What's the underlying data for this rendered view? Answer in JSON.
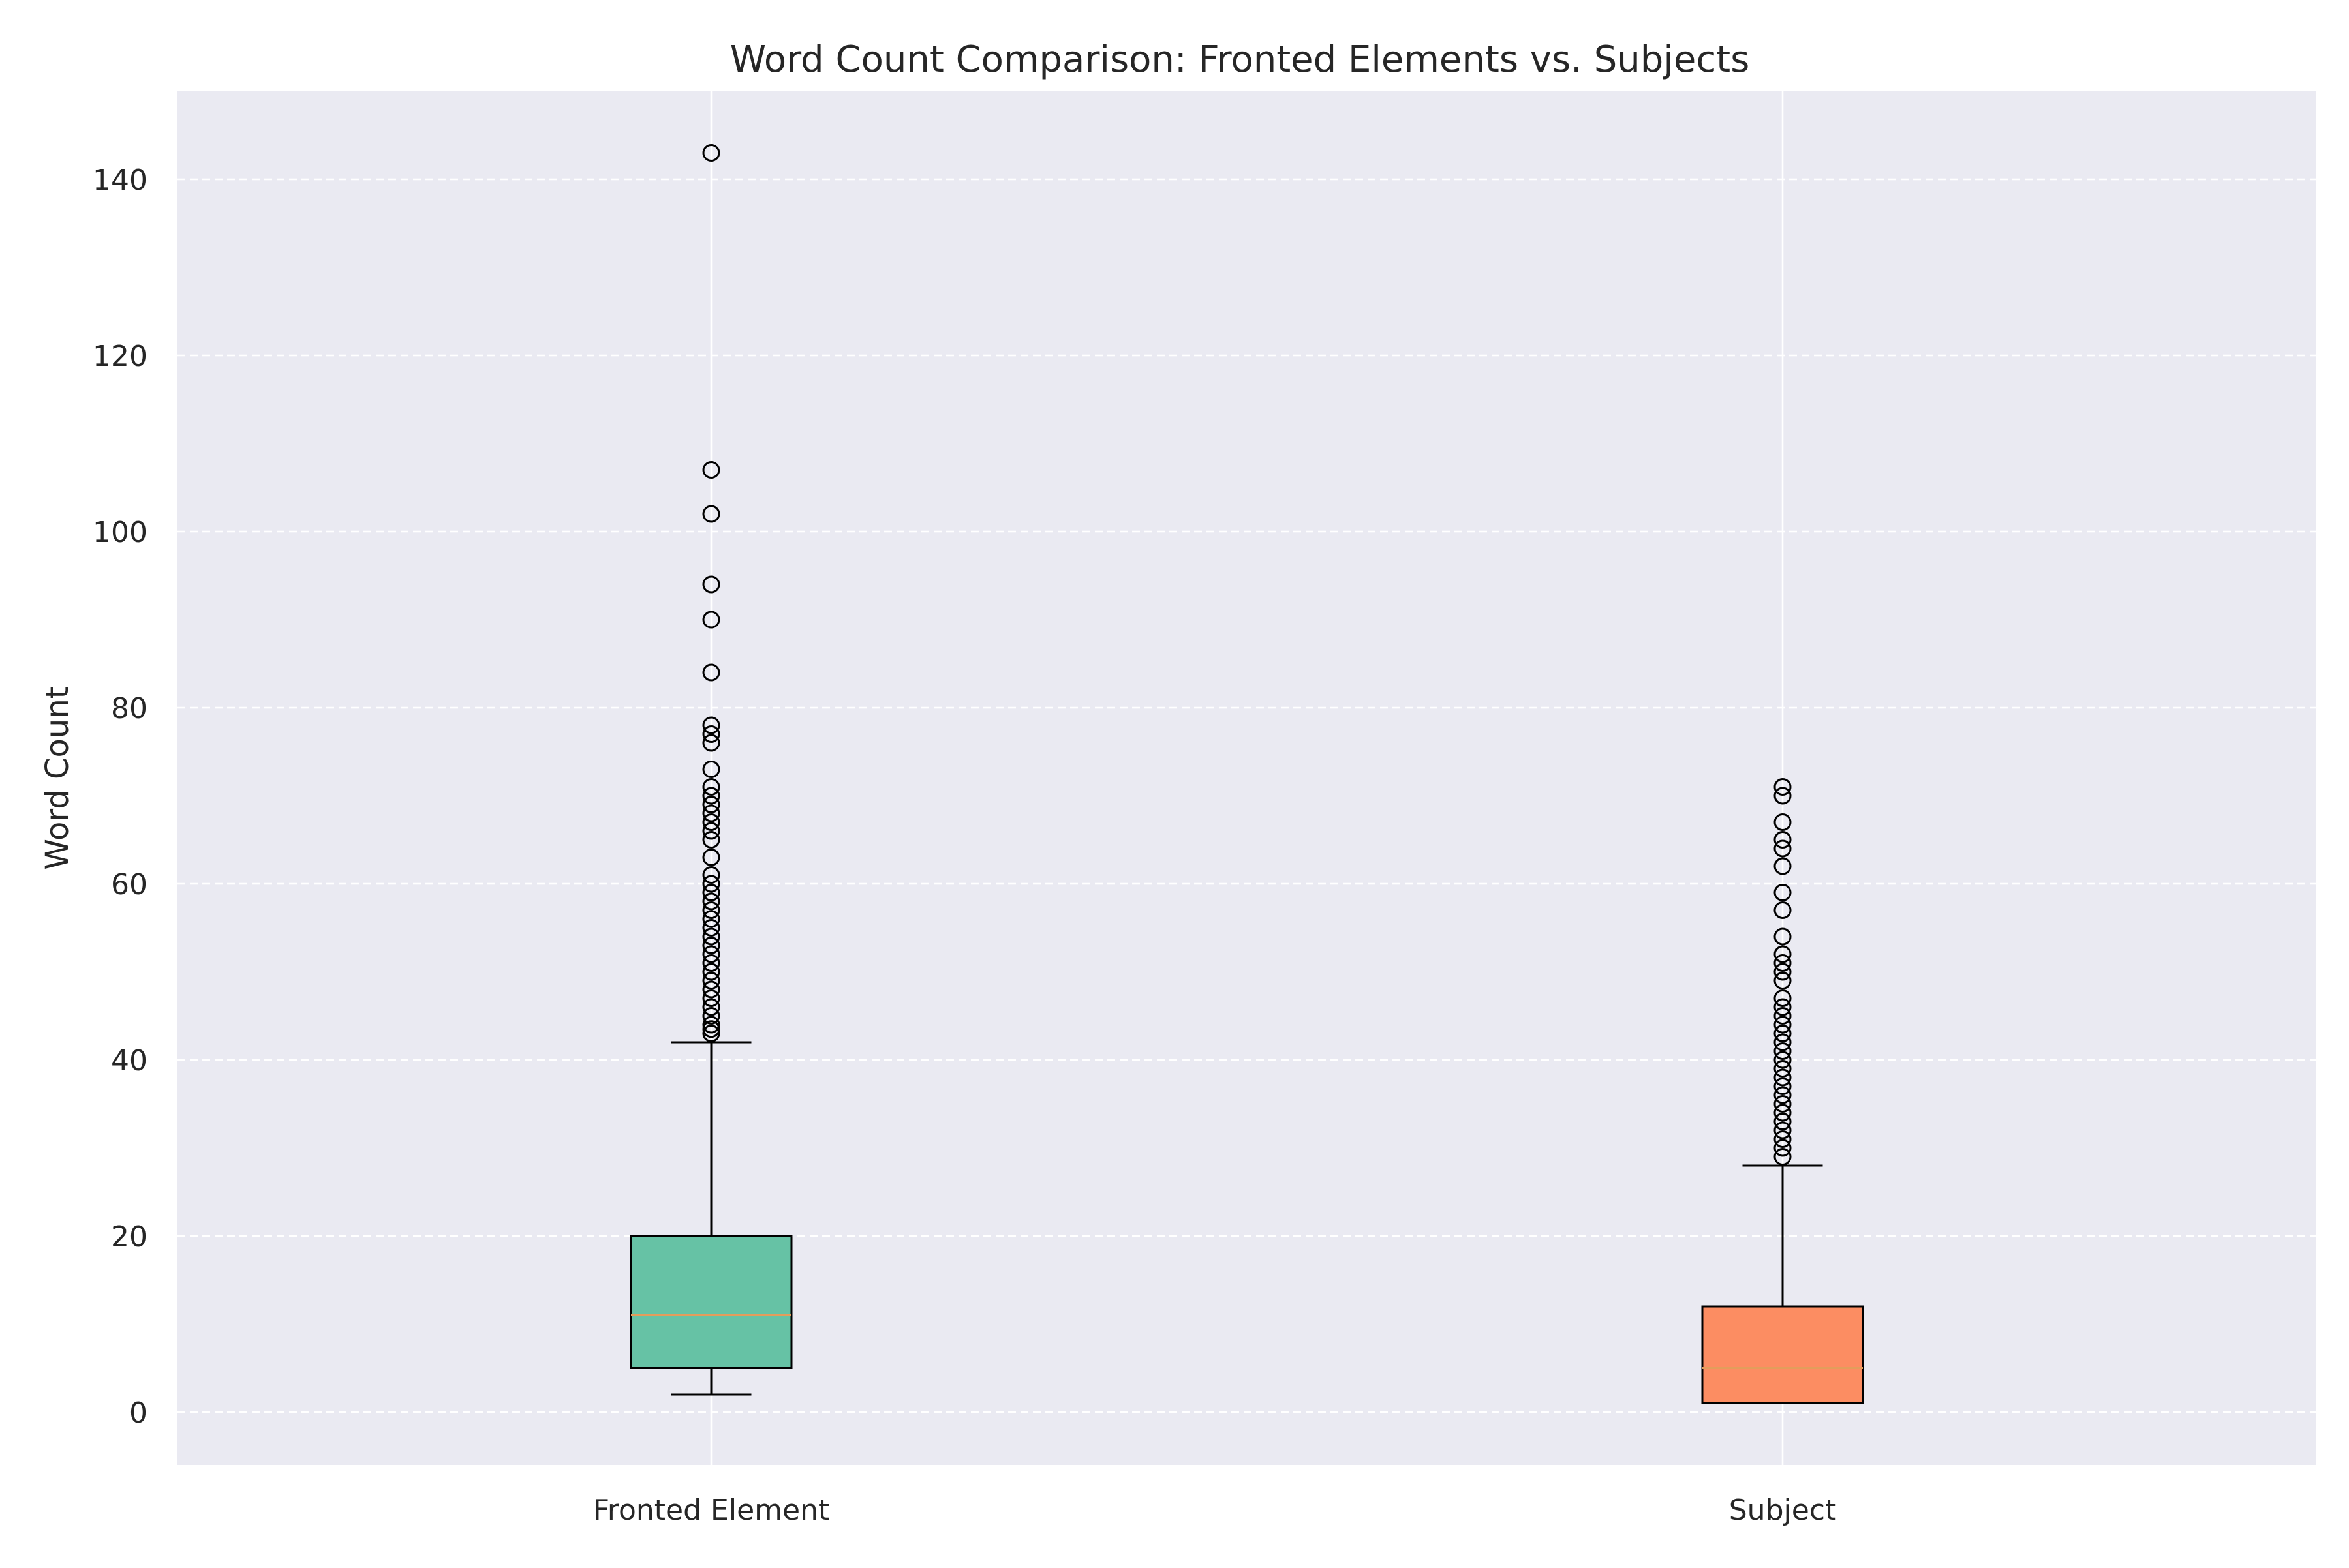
{
  "chart_data": {
    "type": "box",
    "title": "Word Count Comparison: Fronted Elements vs. Subjects",
    "xlabel": "",
    "ylabel": "Word Count",
    "ylim": [
      -6,
      150
    ],
    "yticks": [
      0,
      20,
      40,
      60,
      80,
      100,
      120,
      140
    ],
    "grid": "horizontal dashed, white",
    "colors": {
      "background": "#EAEAF2",
      "grid": "#FFFFFF",
      "median": "#E39D5B",
      "edge": "#000000"
    },
    "categories": [
      "Fronted Element",
      "Subject"
    ],
    "boxes": [
      {
        "label": "Fronted Element",
        "color": "#66C2A5",
        "whisker_low": 2,
        "q1": 5,
        "median": 11,
        "q3": 20,
        "whisker_high": 42,
        "outliers": [
          43,
          43.5,
          44,
          45,
          46,
          47,
          48,
          49,
          50,
          51,
          52,
          53,
          54,
          55,
          56,
          57,
          58,
          59,
          60,
          61,
          63,
          65,
          66,
          67,
          68,
          69,
          70,
          71,
          73,
          76,
          77,
          78,
          84,
          90,
          94,
          102,
          107,
          143
        ]
      },
      {
        "label": "Subject",
        "color": "#FC8D62",
        "whisker_low": 1,
        "q1": 1,
        "median": 5,
        "q3": 12,
        "whisker_high": 28,
        "outliers": [
          29,
          30,
          31,
          32,
          33,
          34,
          35,
          36,
          37,
          38,
          39,
          40,
          41,
          42,
          43,
          44,
          45,
          46,
          47,
          49,
          50,
          51,
          52,
          54,
          57,
          59,
          62,
          64,
          65,
          67,
          70,
          71
        ]
      }
    ]
  }
}
